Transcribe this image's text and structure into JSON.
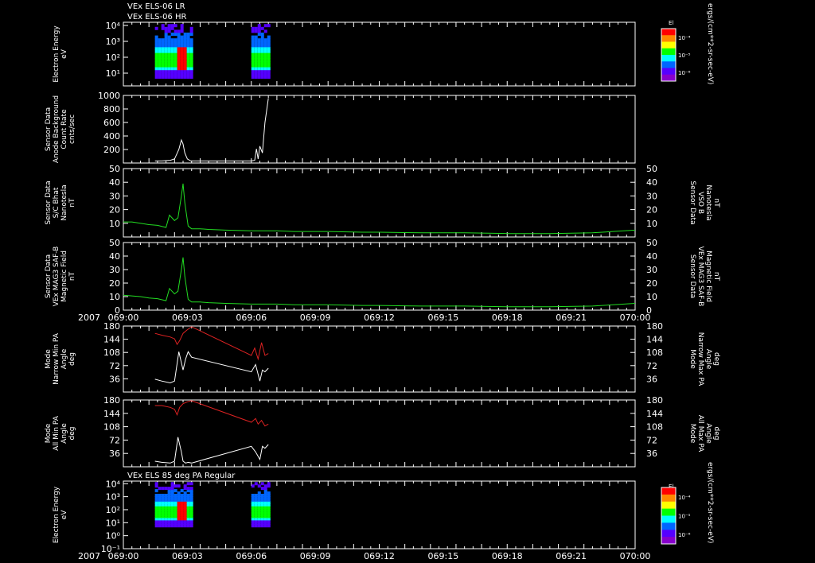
{
  "header": {
    "line1": "VEx ELS-06 LR",
    "line2": "VEx ELS-06 HR",
    "pa_title": "VEx ELS 85 deg PA Regular"
  },
  "time_axis": {
    "year_label": "2007",
    "ticks": [
      "069:00",
      "069:03",
      "069:06",
      "069:09",
      "069:12",
      "069:15",
      "069:18",
      "069:21",
      "070:00"
    ]
  },
  "colorbar": {
    "title": "El",
    "ticks": [
      "10⁻⁴",
      "10⁻⁵",
      "10⁻⁶"
    ],
    "unit_label": "ergs/(cm**2-sr-sec-eV)",
    "colors": [
      "#ff0000",
      "#ff8800",
      "#ffff00",
      "#00ff00",
      "#00ffff",
      "#0066ff",
      "#5500ff",
      "#8800cc"
    ]
  },
  "colors": {
    "background": "#000000",
    "axes": "#ffffff",
    "green_trace": "#22dd22",
    "red_trace": "#dd2222",
    "white_trace": "#ffffff",
    "green_label": "#22dd22",
    "red_label": "#dd2222"
  },
  "panels": [
    {
      "id": "els_lr_hr",
      "type": "spectrogram",
      "left_label": [
        "Electron Energy",
        "eV"
      ],
      "yticks": [
        "10⁴",
        "10³",
        "10²",
        "10¹"
      ],
      "yvalues": [
        4,
        3,
        2,
        1
      ]
    },
    {
      "id": "anode_background",
      "type": "line",
      "left_label": [
        "Sensor Data",
        "Anode Background",
        "Count Rate",
        "cnts/sec"
      ],
      "yticks": [
        "1000",
        "800",
        "600",
        "400",
        "200"
      ],
      "ylim": [
        0,
        1000
      ]
    },
    {
      "id": "bhat",
      "type": "line",
      "left_label": [
        "Sensor Data",
        "S/C Bhat",
        "Nanotesla",
        "nT"
      ],
      "right_label": [
        "Sensor Data",
        "VSO B",
        "Nanotesla",
        "nT"
      ],
      "yticks": [
        "50",
        "40",
        "30",
        "20",
        "10"
      ],
      "ylim": [
        0,
        50
      ]
    },
    {
      "id": "mag_field",
      "type": "line",
      "left_label": [
        "Sensor Data",
        "VEx MAG3 SAF-B",
        "Magnetic Field",
        "nT"
      ],
      "right_label": [
        "Sensor Data",
        "VEx MAG3 SAF-B",
        "Magnetic Field",
        "nT"
      ],
      "yticks": [
        "50",
        "40",
        "30",
        "20",
        "10",
        "0"
      ],
      "ylim": [
        0,
        50
      ]
    },
    {
      "id": "narrow_pa",
      "type": "line",
      "left_label": [
        "Mode",
        "Narrow Min PA",
        "Angle",
        "deg"
      ],
      "right_label": [
        "Mode",
        "Narrow Max PA",
        "Angle",
        "deg"
      ],
      "yticks": [
        "180",
        "144",
        "108",
        "72",
        "36"
      ],
      "ylim": [
        0,
        180
      ]
    },
    {
      "id": "all_pa",
      "type": "line",
      "left_label": [
        "Mode",
        "All Min PA",
        "Angle",
        "deg"
      ],
      "right_label": [
        "Mode",
        "All Max PA",
        "Angle",
        "deg"
      ],
      "yticks": [
        "180",
        "144",
        "108",
        "72",
        "36"
      ],
      "ylim": [
        0,
        180
      ]
    },
    {
      "id": "els_85deg",
      "type": "spectrogram",
      "left_label": [
        "Electron Energy",
        "eV"
      ],
      "yticks": [
        "10⁴",
        "10³",
        "10²",
        "10¹",
        "10⁰",
        "10⁻¹"
      ],
      "yvalues": [
        4,
        3,
        2,
        1,
        0,
        -1
      ]
    }
  ],
  "chart_data": {
    "type": "line",
    "x_unit": "minutes after 069:00",
    "xlim": [
      0,
      60
    ],
    "spectrogram_intervals": [
      [
        3.7,
        7.9
      ],
      [
        15.0,
        17.0
      ]
    ],
    "series": [
      {
        "name": "S/C Bhat",
        "panel": "bhat",
        "x": [
          0,
          1,
          2,
          3,
          4,
          5,
          5.4,
          6,
          6.4,
          6.8,
          7.0,
          7.2,
          7.6,
          8.0,
          9,
          10,
          12,
          15,
          18,
          20,
          24,
          28,
          30,
          35,
          40,
          45,
          50,
          55,
          60
        ],
        "y": [
          11,
          11,
          10,
          9,
          8.5,
          7,
          16,
          12,
          14,
          30,
          39,
          25,
          8,
          6,
          6,
          5.5,
          5,
          4.5,
          4.5,
          4,
          4,
          3.5,
          3.5,
          3,
          3,
          2.5,
          2.5,
          3,
          5
        ]
      },
      {
        "name": "VEx MAG3 SAF-B",
        "panel": "mag_field",
        "x": [
          0,
          1,
          2,
          3,
          4,
          5,
          5.4,
          6,
          6.4,
          6.8,
          7.0,
          7.2,
          7.6,
          8.0,
          9,
          10,
          12,
          15,
          18,
          20,
          24,
          28,
          30,
          35,
          40,
          45,
          50,
          55,
          60
        ],
        "y": [
          11,
          10.5,
          10,
          9,
          8.5,
          7,
          16,
          12,
          14,
          30,
          39,
          25,
          8,
          6,
          6,
          5.5,
          5,
          4.5,
          4.5,
          4,
          4,
          3.5,
          3.5,
          3,
          3,
          2.5,
          2.5,
          3,
          5
        ]
      },
      {
        "name": "Anode Background",
        "panel": "anode_background",
        "x": [
          3.7,
          4.5,
          5.5,
          6.0,
          6.5,
          6.8,
          7.0,
          7.2,
          7.5,
          7.9,
          15.0,
          15.4,
          15.6,
          15.8,
          16.0,
          16.3,
          16.6,
          17.0
        ],
        "y": [
          30,
          30,
          40,
          60,
          200,
          340,
          280,
          150,
          60,
          30,
          30,
          40,
          210,
          60,
          250,
          150,
          600,
          960
        ]
      },
      {
        "name": "Narrow Min PA",
        "panel": "narrow_pa",
        "x": [
          3.7,
          4.5,
          5.5,
          6.0,
          6.5,
          6.8,
          7.0,
          7.3,
          7.6,
          8.0,
          15.0,
          15.5,
          16.0,
          16.3,
          16.6,
          17.0
        ],
        "y": [
          35,
          30,
          25,
          30,
          110,
          80,
          60,
          90,
          110,
          95,
          55,
          75,
          30,
          60,
          55,
          65
        ]
      },
      {
        "name": "Narrow Max PA",
        "panel": "narrow_pa",
        "x": [
          3.7,
          4.5,
          5.5,
          6.0,
          6.3,
          6.6,
          7.0,
          7.5,
          8.0,
          15.0,
          15.4,
          15.8,
          16.2,
          16.6,
          17.0
        ],
        "y": [
          160,
          155,
          150,
          145,
          130,
          140,
          160,
          170,
          178,
          100,
          120,
          90,
          135,
          100,
          105
        ]
      },
      {
        "name": "All Min PA",
        "panel": "all_pa",
        "x": [
          3.7,
          4.5,
          5.5,
          6.0,
          6.4,
          6.8,
          7.0,
          7.3,
          7.6,
          8.0,
          15.0,
          15.5,
          16.0,
          16.3,
          16.6,
          17.0
        ],
        "y": [
          15,
          12,
          10,
          15,
          80,
          40,
          15,
          10,
          12,
          10,
          55,
          40,
          20,
          55,
          50,
          60
        ]
      },
      {
        "name": "All Max PA",
        "panel": "all_pa",
        "x": [
          3.7,
          4.5,
          5.5,
          6.0,
          6.3,
          6.6,
          7.0,
          7.5,
          8.0,
          15.0,
          15.5,
          15.8,
          16.2,
          16.6,
          17.0
        ],
        "y": [
          165,
          165,
          160,
          155,
          140,
          160,
          170,
          175,
          178,
          120,
          130,
          115,
          125,
          110,
          115
        ]
      }
    ]
  }
}
